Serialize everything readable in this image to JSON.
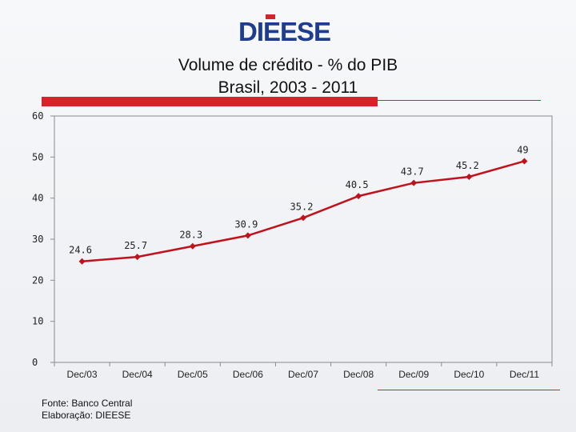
{
  "logo": {
    "text": "DIEESE",
    "color": "#1f3d8f",
    "accent": "#d6222a"
  },
  "title": {
    "line1": "Volume de crédito - % do PIB",
    "line2": "Brasil, 2003 - 2011"
  },
  "source": {
    "line1": "Fonte: Banco Central",
    "line2": "Elaboração: DIEESE"
  },
  "chart_data": {
    "type": "line",
    "title": "Volume de crédito - % do PIB",
    "subtitle": "Brasil, 2003 - 2011",
    "categories": [
      "Dec/03",
      "Dec/04",
      "Dec/05",
      "Dec/06",
      "Dec/07",
      "Dec/08",
      "Dec/09",
      "Dec/10",
      "Dec/11"
    ],
    "series": [
      {
        "values": [
          24.6,
          25.7,
          28.3,
          30.9,
          35.2,
          40.5,
          43.7,
          45.2,
          49
        ],
        "color": "#c0121c"
      }
    ],
    "ylim": [
      0,
      60
    ],
    "yticks": [
      0,
      10,
      20,
      30,
      40,
      50,
      60
    ],
    "grid": false,
    "data_labels": [
      "24.6",
      "25.7",
      "28.3",
      "30.9",
      "35.2",
      "40.5",
      "43.7",
      "45.2",
      "49"
    ]
  }
}
